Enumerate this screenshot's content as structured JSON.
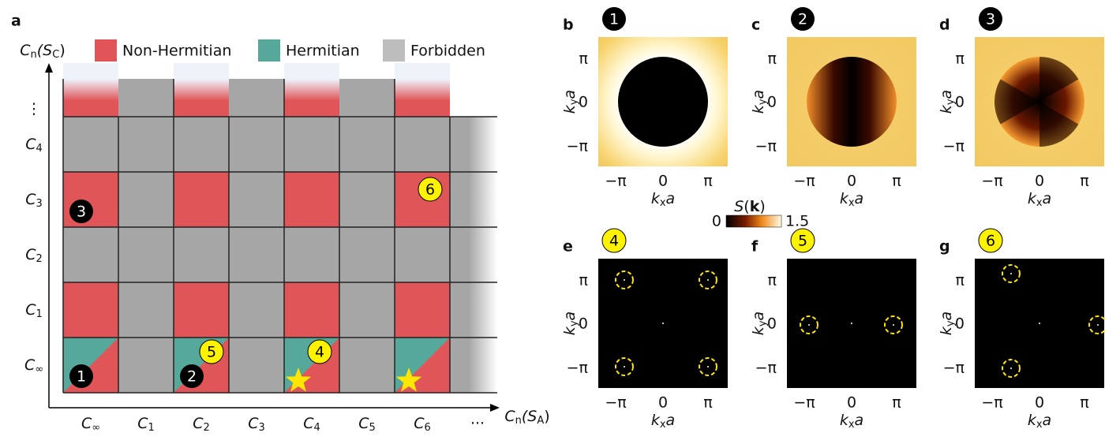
{
  "panel_a": {
    "label": "a",
    "legend": [
      "Non-Hermitian",
      "Hermitian",
      "Forbidden"
    ],
    "y_axis_label": {
      "main": "C",
      "sub": "n",
      "open": "(S",
      "sub2": "C",
      "close": ")"
    },
    "x_axis_label": {
      "main": "C",
      "sub": "n",
      "open": "(S",
      "sub2": "A",
      "close": ")"
    },
    "row_labels": [
      {
        "main": "⋮"
      },
      {
        "main": "C",
        "sub": "4"
      },
      {
        "main": "C",
        "sub": "3"
      },
      {
        "main": "C",
        "sub": "2"
      },
      {
        "main": "C",
        "sub": "1"
      },
      {
        "main": "C",
        "sub": "∞"
      }
    ],
    "column_labels": [
      {
        "main": "C",
        "sub": "∞"
      },
      {
        "main": "C",
        "sub": "1"
      },
      {
        "main": "C",
        "sub": "2"
      },
      {
        "main": "C",
        "sub": "3"
      },
      {
        "main": "C",
        "sub": "4"
      },
      {
        "main": "C",
        "sub": "5"
      },
      {
        "main": "C",
        "sub": "6"
      },
      {
        "main": "···"
      }
    ],
    "badges": [
      "1",
      "2",
      "3",
      "4",
      "5",
      "6"
    ]
  },
  "panels": [
    {
      "label": "b",
      "badge": "1"
    },
    {
      "label": "c",
      "badge": "2"
    },
    {
      "label": "d",
      "badge": "3"
    },
    {
      "label": "e",
      "badge": "4"
    },
    {
      "label": "f",
      "badge": "5"
    },
    {
      "label": "g",
      "badge": "6"
    }
  ],
  "ticks": [
    "−π",
    "0",
    "π"
  ],
  "x_label": {
    "main": "k",
    "sub": "x",
    "tail": "a"
  },
  "y_label": {
    "main": "k",
    "sub": "y",
    "tail": "a"
  },
  "colorbar": {
    "main": "S",
    "open": "(",
    "bold": "k",
    "close": ")",
    "min": 0,
    "max": 1.5
  }
}
